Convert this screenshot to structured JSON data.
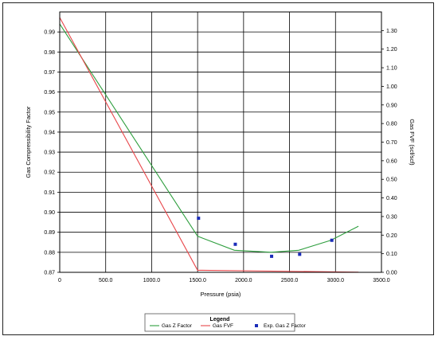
{
  "chart_data": {
    "type": "line",
    "title": "",
    "xlabel": "Pressure (psia)",
    "ylabel": "Gas Compressibility Factor",
    "y2label": "Gas FVF (scf/scf)",
    "xlim": [
      0,
      3500
    ],
    "ylim": [
      0.87,
      1.0
    ],
    "y2lim": [
      0.0,
      1.4
    ],
    "x_ticks": [
      "0",
      "500.0",
      "1000.0",
      "1500.0",
      "2000.0",
      "2500.0",
      "3000.0",
      "3500.0"
    ],
    "y_ticks": [
      "0.87",
      "0.88",
      "0.89",
      "0.90",
      "0.91",
      "0.92",
      "0.93",
      "0.94",
      "0.95",
      "0.96",
      "0.97",
      "0.98",
      "0.99"
    ],
    "y2_ticks": [
      "0.00",
      "0.10",
      "0.20",
      "0.30",
      "0.40",
      "0.50",
      "0.60",
      "0.70",
      "0.80",
      "0.90",
      "1.00",
      "1.10",
      "1.20",
      "1.30"
    ],
    "grid": true,
    "legend_title": "Legend",
    "legend_position": "bottom",
    "series": [
      {
        "name": "Gas Z Factor",
        "kind": "line",
        "axis": "left",
        "color": "#2e9e3e",
        "x": [
          0,
          1500,
          1900,
          2300,
          2600,
          2950,
          3250
        ],
        "y": [
          0.994,
          0.888,
          0.881,
          0.88,
          0.881,
          0.886,
          0.893
        ]
      },
      {
        "name": "Gas FVF",
        "kind": "line",
        "axis": "right",
        "color": "#e8464a",
        "x": [
          0,
          1500,
          3250
        ],
        "y": [
          1.37,
          0.011,
          0.001
        ]
      },
      {
        "name": "Exp. Gas Z Factor",
        "kind": "scatter",
        "axis": "left",
        "color": "#1a2bb8",
        "x": [
          1510,
          1910,
          2305,
          2610,
          2960
        ],
        "y": [
          0.897,
          0.884,
          0.878,
          0.879,
          0.886
        ]
      }
    ]
  }
}
